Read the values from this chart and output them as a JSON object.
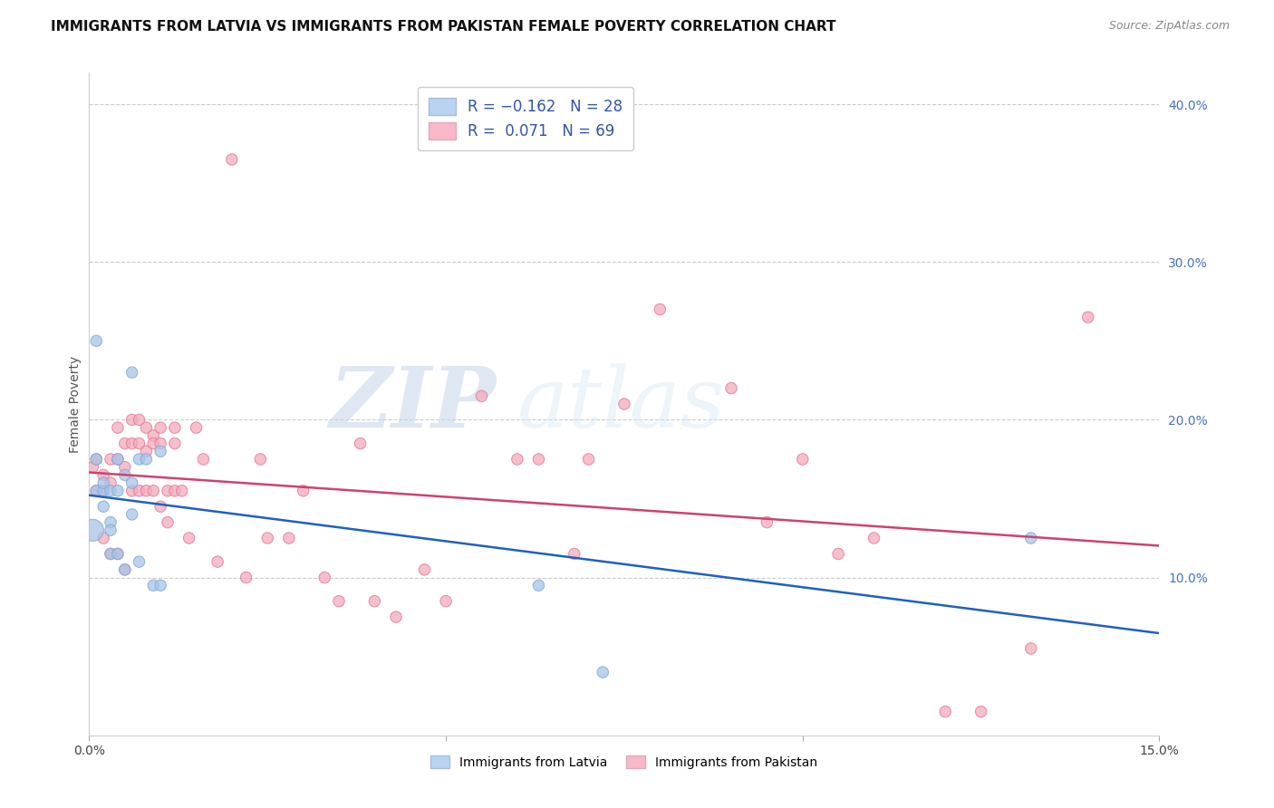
{
  "title": "IMMIGRANTS FROM LATVIA VS IMMIGRANTS FROM PAKISTAN FEMALE POVERTY CORRELATION CHART",
  "source": "Source: ZipAtlas.com",
  "ylabel": "Female Poverty",
  "xlim": [
    0.0,
    0.15
  ],
  "ylim": [
    0.0,
    0.42
  ],
  "watermark_zip": "ZIP",
  "watermark_atlas": "atlas",
  "legend_label_blue": "Immigrants from Latvia",
  "legend_label_pink": "Immigrants from Pakistan",
  "blue_scatter_color": "#a8c4e8",
  "blue_edge_color": "#7aaad4",
  "pink_scatter_color": "#f4aabb",
  "pink_edge_color": "#e07898",
  "trend_blue_color": "#2060c0",
  "trend_pink_color": "#d04070",
  "legend_blue_face": "#b8d4f0",
  "legend_pink_face": "#f8b8c8",
  "grid_color": "#cccccc",
  "background_color": "#ffffff",
  "title_fontsize": 11,
  "latvia_x": [
    0.0005,
    0.001,
    0.001,
    0.001,
    0.002,
    0.002,
    0.002,
    0.003,
    0.003,
    0.003,
    0.003,
    0.004,
    0.004,
    0.004,
    0.005,
    0.005,
    0.006,
    0.006,
    0.006,
    0.007,
    0.007,
    0.008,
    0.009,
    0.01,
    0.01,
    0.063,
    0.072,
    0.132
  ],
  "latvia_y": [
    0.13,
    0.175,
    0.155,
    0.25,
    0.155,
    0.145,
    0.16,
    0.155,
    0.135,
    0.13,
    0.115,
    0.175,
    0.155,
    0.115,
    0.165,
    0.105,
    0.23,
    0.16,
    0.14,
    0.175,
    0.11,
    0.175,
    0.095,
    0.18,
    0.095,
    0.095,
    0.04,
    0.125
  ],
  "latvia_sizes": [
    300,
    80,
    80,
    80,
    80,
    80,
    80,
    80,
    80,
    80,
    80,
    80,
    80,
    80,
    80,
    80,
    80,
    80,
    80,
    80,
    80,
    80,
    80,
    80,
    80,
    80,
    80,
    80
  ],
  "pakistan_x": [
    0.0005,
    0.001,
    0.001,
    0.002,
    0.002,
    0.002,
    0.003,
    0.003,
    0.003,
    0.004,
    0.004,
    0.004,
    0.005,
    0.005,
    0.005,
    0.006,
    0.006,
    0.006,
    0.007,
    0.007,
    0.007,
    0.008,
    0.008,
    0.008,
    0.009,
    0.009,
    0.009,
    0.01,
    0.01,
    0.01,
    0.011,
    0.011,
    0.012,
    0.012,
    0.012,
    0.013,
    0.014,
    0.015,
    0.016,
    0.018,
    0.02,
    0.022,
    0.024,
    0.025,
    0.028,
    0.03,
    0.033,
    0.035,
    0.038,
    0.04,
    0.043,
    0.047,
    0.05,
    0.055,
    0.06,
    0.063,
    0.068,
    0.07,
    0.075,
    0.08,
    0.09,
    0.095,
    0.1,
    0.105,
    0.11,
    0.12,
    0.125,
    0.132,
    0.14
  ],
  "pakistan_y": [
    0.17,
    0.175,
    0.155,
    0.165,
    0.155,
    0.125,
    0.175,
    0.16,
    0.115,
    0.195,
    0.175,
    0.115,
    0.185,
    0.17,
    0.105,
    0.2,
    0.185,
    0.155,
    0.2,
    0.185,
    0.155,
    0.195,
    0.18,
    0.155,
    0.19,
    0.185,
    0.155,
    0.195,
    0.185,
    0.145,
    0.155,
    0.135,
    0.195,
    0.185,
    0.155,
    0.155,
    0.125,
    0.195,
    0.175,
    0.11,
    0.365,
    0.1,
    0.175,
    0.125,
    0.125,
    0.155,
    0.1,
    0.085,
    0.185,
    0.085,
    0.075,
    0.105,
    0.085,
    0.215,
    0.175,
    0.175,
    0.115,
    0.175,
    0.21,
    0.27,
    0.22,
    0.135,
    0.175,
    0.115,
    0.125,
    0.015,
    0.015,
    0.055,
    0.265
  ],
  "pakistan_sizes": [
    80,
    80,
    80,
    80,
    80,
    80,
    80,
    80,
    80,
    80,
    80,
    80,
    80,
    80,
    80,
    80,
    80,
    80,
    80,
    80,
    80,
    80,
    80,
    80,
    80,
    80,
    80,
    80,
    80,
    80,
    80,
    80,
    80,
    80,
    80,
    80,
    80,
    80,
    80,
    80,
    80,
    80,
    80,
    80,
    80,
    80,
    80,
    80,
    80,
    80,
    80,
    80,
    80,
    80,
    80,
    80,
    80,
    80,
    80,
    80,
    80,
    80,
    80,
    80,
    80,
    80,
    80,
    80,
    80
  ]
}
